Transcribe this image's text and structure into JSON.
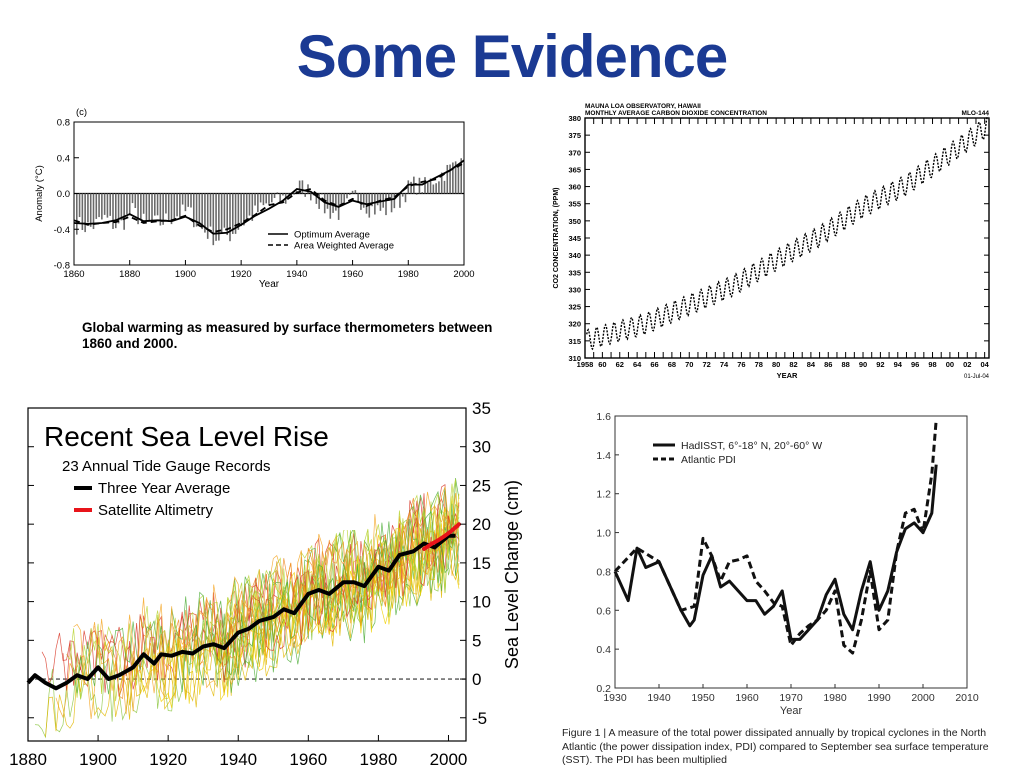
{
  "slide": {
    "title": "Some Evidence"
  },
  "chart_data": [
    {
      "id": "temp",
      "type": "bar",
      "panel_label": "(c)",
      "xlabel": "Year",
      "ylabel": "Anomaly (°C)",
      "xlim": [
        1860,
        2000
      ],
      "ylim": [
        -0.8,
        0.8
      ],
      "xticks": [
        1860,
        1880,
        1900,
        1920,
        1940,
        1960,
        1980,
        2000
      ],
      "yticks": [
        -0.8,
        -0.4,
        0.0,
        0.4,
        0.8
      ],
      "ytick_labels": [
        "-0.8",
        "-0.4",
        "0.0",
        "0.4",
        "0.8"
      ],
      "legend": [
        "Optimum Average",
        "Area Weighted Average"
      ],
      "legend_position": "bottom-right",
      "caption": "Global warming as measured by surface thermometers between 1860 and 2000.",
      "series": [
        {
          "name": "Optimum Average",
          "style": "solid",
          "x": [
            1860,
            1865,
            1870,
            1875,
            1880,
            1885,
            1890,
            1895,
            1900,
            1905,
            1910,
            1915,
            1920,
            1925,
            1930,
            1935,
            1940,
            1945,
            1950,
            1955,
            1960,
            1965,
            1970,
            1975,
            1980,
            1985,
            1990,
            1995,
            2000
          ],
          "y": [
            -0.33,
            -0.34,
            -0.33,
            -0.3,
            -0.23,
            -0.31,
            -0.3,
            -0.31,
            -0.26,
            -0.33,
            -0.45,
            -0.44,
            -0.35,
            -0.25,
            -0.17,
            -0.08,
            0.05,
            0.02,
            -0.1,
            -0.15,
            -0.08,
            -0.12,
            -0.09,
            -0.06,
            0.1,
            0.1,
            0.18,
            0.26,
            0.37
          ]
        },
        {
          "name": "Area Weighted Average",
          "style": "dashed",
          "x": [
            1860,
            1865,
            1870,
            1875,
            1880,
            1885,
            1890,
            1895,
            1900,
            1905,
            1910,
            1915,
            1920,
            1925,
            1930,
            1935,
            1940,
            1945,
            1950,
            1955,
            1960,
            1965,
            1970,
            1975,
            1980,
            1985,
            1990,
            1995,
            2000
          ],
          "y": [
            -0.3,
            -0.35,
            -0.33,
            -0.32,
            -0.26,
            -0.33,
            -0.31,
            -0.3,
            -0.25,
            -0.36,
            -0.43,
            -0.4,
            -0.33,
            -0.24,
            -0.13,
            -0.1,
            0.01,
            0.05,
            -0.08,
            -0.14,
            -0.06,
            -0.14,
            -0.08,
            -0.04,
            0.08,
            0.13,
            0.16,
            0.26,
            0.34
          ]
        }
      ],
      "annual_bars": {
        "x": [
          1861,
          1866,
          1871,
          1876,
          1881,
          1886,
          1891,
          1896,
          1901,
          1906,
          1911,
          1916,
          1921,
          1926,
          1931,
          1936,
          1941,
          1946,
          1951,
          1956,
          1961,
          1966,
          1971,
          1976,
          1981,
          1986,
          1991,
          1996,
          1999
        ],
        "y": [
          -0.35,
          -0.38,
          -0.28,
          -0.38,
          -0.2,
          -0.35,
          -0.33,
          -0.25,
          -0.2,
          -0.4,
          -0.5,
          -0.46,
          -0.32,
          -0.2,
          -0.1,
          -0.06,
          0.08,
          0.0,
          -0.2,
          -0.22,
          -0.02,
          -0.16,
          -0.2,
          -0.12,
          0.1,
          0.08,
          0.2,
          0.3,
          0.48
        ]
      }
    },
    {
      "id": "co2",
      "type": "line",
      "header": [
        "MAUNA LOA OBSERVATORY, HAWAII",
        "MONTHLY AVERAGE CARBON DIOXIDE CONCENTRATION"
      ],
      "code": "MLO-144",
      "date": "01-Jul-04",
      "xlabel": "YEAR",
      "ylabel": "CO2 CONCENTRATION, (PPM)",
      "xlim": [
        1958,
        2004.5
      ],
      "ylim": [
        310,
        380
      ],
      "xticks": [
        1958,
        1960,
        1962,
        1964,
        1966,
        1968,
        1970,
        1972,
        1974,
        1976,
        1978,
        1980,
        1982,
        1984,
        1986,
        1988,
        1990,
        1992,
        1994,
        1996,
        1998,
        2000,
        2002,
        2004
      ],
      "xtick_labels": [
        "1958",
        "60",
        "62",
        "64",
        "66",
        "68",
        "70",
        "72",
        "74",
        "76",
        "78",
        "80",
        "82",
        "84",
        "86",
        "88",
        "90",
        "92",
        "94",
        "96",
        "98",
        "00",
        "02",
        "04"
      ],
      "yticks": [
        310,
        315,
        320,
        325,
        330,
        335,
        340,
        345,
        350,
        355,
        360,
        365,
        370,
        375,
        380
      ],
      "trend_x": [
        1958,
        1965,
        1970,
        1975,
        1980,
        1985,
        1990,
        1995,
        2000,
        2004
      ],
      "trend_y": [
        315.0,
        320.0,
        325.5,
        331.0,
        338.5,
        345.5,
        354.0,
        360.5,
        369.5,
        377.0
      ],
      "seasonal_amplitude_ppm": 3
    },
    {
      "id": "sealevel",
      "type": "line",
      "title": "Recent Sea Level Rise",
      "subtitle": "23 Annual Tide Gauge Records",
      "ylabel": "Sea Level Change (cm)",
      "xlim": [
        1880,
        2005
      ],
      "ylim": [
        -8,
        35
      ],
      "xticks": [
        1880,
        1900,
        1920,
        1940,
        1960,
        1980,
        2000
      ],
      "yticks": [
        -5,
        0,
        5,
        10,
        15,
        20,
        25,
        30,
        35
      ],
      "legend": [
        "Three Year Average",
        "Satellite Altimetry"
      ],
      "legend_position": "top-left",
      "series": [
        {
          "name": "Three Year Average",
          "color": "#000000",
          "x": [
            1880,
            1882,
            1885,
            1888,
            1891,
            1894,
            1897,
            1900,
            1903,
            1906,
            1910,
            1913,
            1916,
            1918,
            1921,
            1924,
            1927,
            1930,
            1933,
            1936,
            1940,
            1943,
            1946,
            1950,
            1953,
            1956,
            1960,
            1963,
            1966,
            1970,
            1973,
            1976,
            1980,
            1983,
            1986,
            1990,
            1993,
            1996,
            2000,
            2002
          ],
          "y": [
            -0.5,
            0.5,
            -0.5,
            -1.2,
            -0.5,
            0.5,
            0,
            1.5,
            0,
            0.5,
            1.5,
            3.2,
            2,
            3.2,
            3,
            3.5,
            3.3,
            4.2,
            4.5,
            4,
            6,
            6.5,
            7.5,
            8,
            9,
            8.5,
            11,
            11.5,
            11,
            12.5,
            12.5,
            12,
            14.5,
            14,
            16,
            16.5,
            17.5,
            17,
            18.5,
            18.5
          ]
        },
        {
          "name": "Satellite Altimetry",
          "color": "#e8141a",
          "x": [
            1993,
            1995,
            1997,
            1999,
            2001,
            2003
          ],
          "y": [
            16.8,
            17.4,
            17.9,
            18.5,
            19.2,
            20.0
          ]
        }
      ],
      "tide_gauge_records": 23
    },
    {
      "id": "pdi",
      "type": "line",
      "xlabel": "Year",
      "xlim": [
        1930,
        2010
      ],
      "ylim": [
        0.2,
        1.6
      ],
      "xticks": [
        1930,
        1940,
        1950,
        1960,
        1970,
        1980,
        1990,
        2000,
        2010
      ],
      "yticks": [
        0.2,
        0.4,
        0.6,
        0.8,
        1.0,
        1.2,
        1.4,
        1.6
      ],
      "ytick_labels": [
        "0.2",
        "0.4",
        "0.6",
        "0.8",
        "1.0",
        "1.2",
        "1.4",
        "1.6"
      ],
      "legend": [
        "HadISST, 6°-18° N, 20°-60° W",
        "Atlantic PDI"
      ],
      "legend_position": "top-left",
      "series": [
        {
          "name": "HadISST, 6°-18° N, 20°-60° W",
          "style": "solid",
          "x": [
            1930,
            1933,
            1935,
            1937,
            1940,
            1943,
            1945,
            1947,
            1948,
            1950,
            1952,
            1954,
            1956,
            1958,
            1960,
            1962,
            1964,
            1966,
            1968,
            1970,
            1972,
            1974,
            1976,
            1978,
            1980,
            1982,
            1984,
            1986,
            1988,
            1990,
            1992,
            1994,
            1996,
            1998,
            2000,
            2002,
            2003
          ],
          "y": [
            0.8,
            0.65,
            0.92,
            0.82,
            0.85,
            0.7,
            0.6,
            0.52,
            0.55,
            0.78,
            0.88,
            0.72,
            0.75,
            0.7,
            0.65,
            0.65,
            0.58,
            0.62,
            0.7,
            0.45,
            0.45,
            0.5,
            0.55,
            0.68,
            0.76,
            0.58,
            0.5,
            0.7,
            0.85,
            0.6,
            0.7,
            0.9,
            1.02,
            1.05,
            1.0,
            1.1,
            1.35
          ]
        },
        {
          "name": "Atlantic PDI",
          "style": "dashed",
          "x": [
            1930,
            1935,
            1940,
            1945,
            1948,
            1950,
            1952,
            1954,
            1956,
            1958,
            1960,
            1962,
            1964,
            1966,
            1968,
            1970,
            1972,
            1974,
            1976,
            1978,
            1980,
            1982,
            1984,
            1986,
            1988,
            1990,
            1992,
            1994,
            1996,
            1998,
            2000,
            2002,
            2003
          ],
          "y": [
            0.8,
            0.92,
            0.85,
            0.6,
            0.62,
            0.97,
            0.88,
            0.75,
            0.85,
            0.86,
            0.88,
            0.75,
            0.7,
            0.64,
            0.62,
            0.42,
            0.48,
            0.52,
            0.55,
            0.6,
            0.7,
            0.42,
            0.38,
            0.55,
            0.8,
            0.5,
            0.55,
            0.9,
            1.1,
            1.12,
            1.0,
            1.3,
            1.58
          ]
        }
      ],
      "caption": "Figure 1 | A measure of the total power dissipated annually by tropical cyclones in the North Atlantic (the power dissipation index, PDI) compared to September sea surface temperature (SST). The PDI has been multiplied"
    }
  ]
}
